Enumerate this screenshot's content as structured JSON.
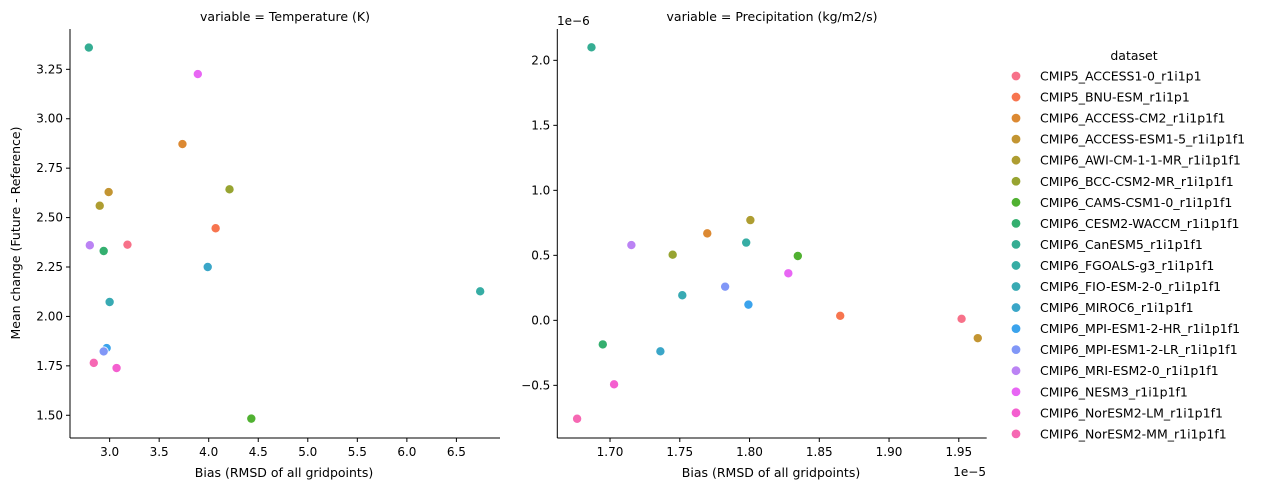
{
  "legend": {
    "title": "dataset",
    "items": [
      {
        "label": "CMIP5_ACCESS1-0_r1i1p1",
        "color": "#f77189"
      },
      {
        "label": "CMIP5_BNU-ESM_r1i1p1",
        "color": "#f7754f"
      },
      {
        "label": "CMIP6_ACCESS-CM2_r1i1p1f1",
        "color": "#dc8932"
      },
      {
        "label": "CMIP6_ACCESS-ESM1-5_r1i1p1f1",
        "color": "#c39532"
      },
      {
        "label": "CMIP6_AWI-CM-1-1-MR_r1i1p1f1",
        "color": "#ae9d31"
      },
      {
        "label": "CMIP6_BCC-CSM2-MR_r1i1p1f1",
        "color": "#97a431"
      },
      {
        "label": "CMIP6_CAMS-CSM1-0_r1i1p1f1",
        "color": "#50b131"
      },
      {
        "label": "CMIP6_CESM2-WACCM_r1i1p1f1",
        "color": "#34af6f"
      },
      {
        "label": "CMIP6_CanESM5_r1i1p1f1",
        "color": "#35ad93"
      },
      {
        "label": "CMIP6_FGOALS-g3_r1i1p1f1",
        "color": "#36ada4"
      },
      {
        "label": "CMIP6_FIO-ESM-2-0_r1i1p1f1",
        "color": "#38aab3"
      },
      {
        "label": "CMIP6_MIROC6_r1i1p1f1",
        "color": "#3aa6c8"
      },
      {
        "label": "CMIP6_MPI-ESM1-2-HR_r1i1p1f1",
        "color": "#3ba3ec"
      },
      {
        "label": "CMIP6_MPI-ESM1-2-LR_r1i1p1f1",
        "color": "#8197f7"
      },
      {
        "label": "CMIP6_MRI-ESM2-0_r1i1p1f1",
        "color": "#bb83f4"
      },
      {
        "label": "CMIP6_NESM3_r1i1p1f1",
        "color": "#e866f4"
      },
      {
        "label": "CMIP6_NorESM2-LM_r1i1p1f1",
        "color": "#f45fcf"
      },
      {
        "label": "CMIP6_NorESM2-MM_r1i1p1f1",
        "color": "#f668b3"
      }
    ]
  },
  "chart_data": [
    {
      "type": "scatter",
      "title": "variable = Temperature (K)",
      "xlabel": "Bias (RMSD of all gridpoints)",
      "ylabel": "Mean change (Future - Reference)",
      "xlim": [
        2.6,
        6.94
      ],
      "ylim": [
        1.385,
        3.454
      ],
      "xticks": [
        3.0,
        3.5,
        4.0,
        4.5,
        5.0,
        5.5,
        6.0,
        6.5
      ],
      "xtick_labels": [
        "3.0",
        "3.5",
        "4.0",
        "4.5",
        "5.0",
        "5.5",
        "6.0",
        "6.5"
      ],
      "yticks": [
        1.5,
        1.75,
        2.0,
        2.25,
        2.5,
        2.75,
        3.0,
        3.25
      ],
      "ytick_labels": [
        "1.50",
        "1.75",
        "2.00",
        "2.25",
        "2.50",
        "2.75",
        "3.00",
        "3.25"
      ],
      "x_offset_text": "",
      "y_offset_text": "",
      "grid": false,
      "points": [
        {
          "dataset": "CMIP5_ACCESS1-0_r1i1p1",
          "x": 3.18,
          "y": 2.363
        },
        {
          "dataset": "CMIP5_BNU-ESM_r1i1p1",
          "x": 4.07,
          "y": 2.446
        },
        {
          "dataset": "CMIP6_ACCESS-CM2_r1i1p1f1",
          "x": 3.735,
          "y": 2.872
        },
        {
          "dataset": "CMIP6_ACCESS-ESM1-5_r1i1p1f1",
          "x": 2.99,
          "y": 2.629
        },
        {
          "dataset": "CMIP6_AWI-CM-1-1-MR_r1i1p1f1",
          "x": 2.9,
          "y": 2.56
        },
        {
          "dataset": "CMIP6_BCC-CSM2-MR_r1i1p1f1",
          "x": 4.21,
          "y": 2.643
        },
        {
          "dataset": "CMIP6_CAMS-CSM1-0_r1i1p1f1",
          "x": 4.43,
          "y": 1.483
        },
        {
          "dataset": "CMIP6_CESM2-WACCM_r1i1p1f1",
          "x": 2.94,
          "y": 2.331
        },
        {
          "dataset": "CMIP6_CanESM5_r1i1p1f1",
          "x": 2.79,
          "y": 3.36
        },
        {
          "dataset": "CMIP6_FGOALS-g3_r1i1p1f1",
          "x": 6.74,
          "y": 2.127
        },
        {
          "dataset": "CMIP6_FIO-ESM-2-0_r1i1p1f1",
          "x": 3.0,
          "y": 2.073
        },
        {
          "dataset": "CMIP6_MIROC6_r1i1p1f1",
          "x": 3.99,
          "y": 2.25
        },
        {
          "dataset": "CMIP6_MPI-ESM1-2-HR_r1i1p1f1",
          "x": 2.97,
          "y": 1.84
        },
        {
          "dataset": "CMIP6_MPI-ESM1-2-LR_r1i1p1f1",
          "x": 2.94,
          "y": 1.823
        },
        {
          "dataset": "CMIP6_MRI-ESM2-0_r1i1p1f1",
          "x": 2.8,
          "y": 2.36
        },
        {
          "dataset": "CMIP6_NESM3_r1i1p1f1",
          "x": 3.89,
          "y": 3.226
        },
        {
          "dataset": "CMIP6_NorESM2-LM_r1i1p1f1",
          "x": 3.07,
          "y": 1.739
        },
        {
          "dataset": "CMIP6_NorESM2-MM_r1i1p1f1",
          "x": 2.84,
          "y": 1.765
        }
      ]
    },
    {
      "type": "scatter",
      "title": "variable = Precipitation (kg/m2/s)",
      "xlabel": "Bias (RMSD of all gridpoints)",
      "ylabel": "",
      "xlim": [
        1.6622,
        1.97
      ],
      "ylim": [
        -0.905,
        2.241
      ],
      "xticks": [
        1.7,
        1.75,
        1.8,
        1.85,
        1.9,
        1.95
      ],
      "xtick_labels": [
        "1.70",
        "1.75",
        "1.80",
        "1.85",
        "1.90",
        "1.95"
      ],
      "yticks": [
        -0.5,
        0.0,
        0.5,
        1.0,
        1.5,
        2.0
      ],
      "ytick_labels": [
        "−0.5",
        "0.0",
        "0.5",
        "1.0",
        "1.5",
        "2.0"
      ],
      "x_offset_text": "1e−5",
      "y_offset_text": "1e−6",
      "grid": false,
      "points": [
        {
          "dataset": "CMIP5_ACCESS1-0_r1i1p1",
          "x": 1.952,
          "y": 0.012
        },
        {
          "dataset": "CMIP5_BNU-ESM_r1i1p1",
          "x": 1.865,
          "y": 0.035
        },
        {
          "dataset": "CMIP6_ACCESS-CM2_r1i1p1f1",
          "x": 1.7697,
          "y": 0.669
        },
        {
          "dataset": "CMIP6_ACCESS-ESM1-5_r1i1p1f1",
          "x": 1.9636,
          "y": -0.137
        },
        {
          "dataset": "CMIP6_AWI-CM-1-1-MR_r1i1p1f1",
          "x": 1.8006,
          "y": 0.771
        },
        {
          "dataset": "CMIP6_BCC-CSM2-MR_r1i1p1f1",
          "x": 1.7449,
          "y": 0.505
        },
        {
          "dataset": "CMIP6_CAMS-CSM1-0_r1i1p1f1",
          "x": 1.8346,
          "y": 0.495
        },
        {
          "dataset": "CMIP6_CESM2-WACCM_r1i1p1f1",
          "x": 1.6948,
          "y": -0.185
        },
        {
          "dataset": "CMIP6_CanESM5_r1i1p1f1",
          "x": 1.6867,
          "y": 2.1
        },
        {
          "dataset": "CMIP6_FGOALS-g3_r1i1p1f1",
          "x": 1.7976,
          "y": 0.598
        },
        {
          "dataset": "CMIP6_FIO-ESM-2-0_r1i1p1f1",
          "x": 1.7518,
          "y": 0.193
        },
        {
          "dataset": "CMIP6_MIROC6_r1i1p1f1",
          "x": 1.7361,
          "y": -0.238
        },
        {
          "dataset": "CMIP6_MPI-ESM1-2-HR_r1i1p1f1",
          "x": 1.7992,
          "y": 0.121
        },
        {
          "dataset": "CMIP6_MPI-ESM1-2-LR_r1i1p1f1",
          "x": 1.7825,
          "y": 0.259
        },
        {
          "dataset": "CMIP6_MRI-ESM2-0_r1i1p1f1",
          "x": 1.7153,
          "y": 0.579
        },
        {
          "dataset": "CMIP6_NESM3_r1i1p1f1",
          "x": 1.8278,
          "y": 0.362
        },
        {
          "dataset": "CMIP6_NorESM2-LM_r1i1p1f1",
          "x": 1.7029,
          "y": -0.492
        },
        {
          "dataset": "CMIP6_NorESM2-MM_r1i1p1f1",
          "x": 1.6764,
          "y": -0.757
        }
      ]
    }
  ]
}
